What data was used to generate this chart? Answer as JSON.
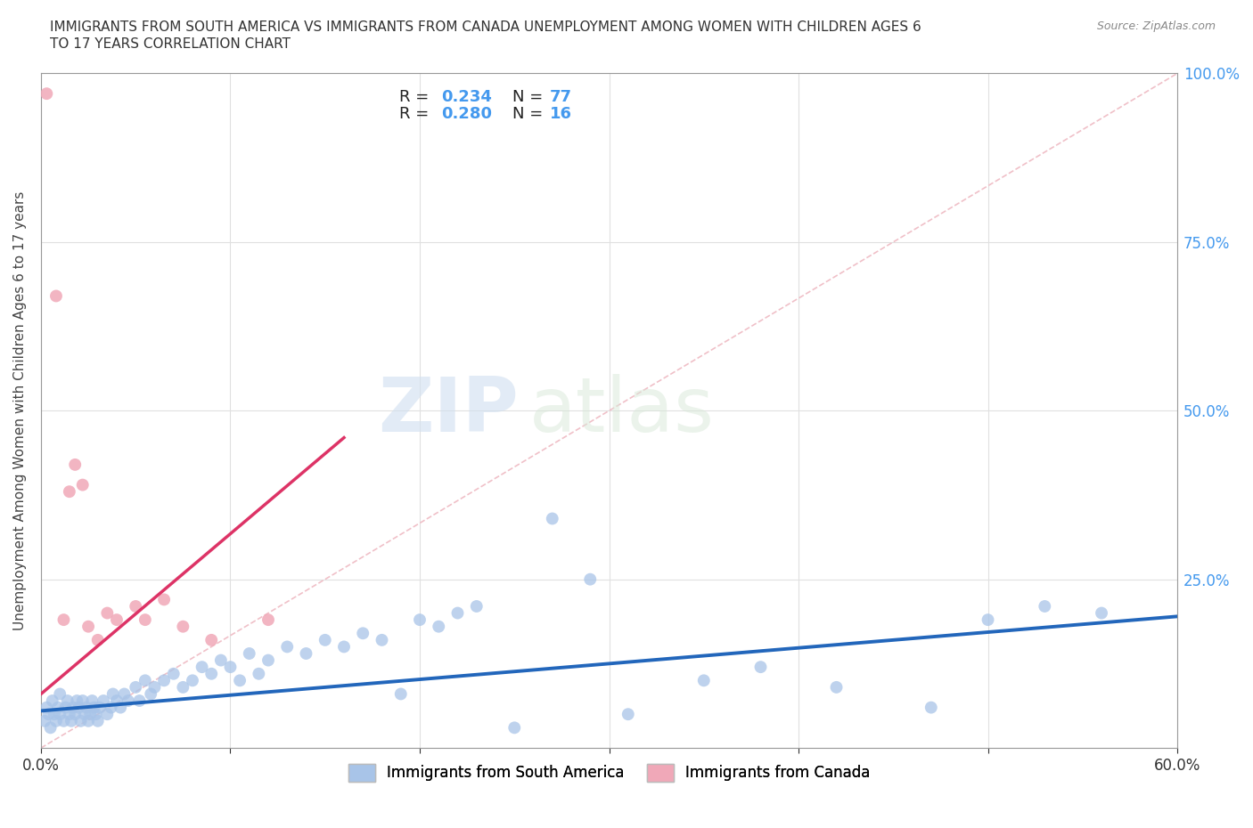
{
  "title_line1": "IMMIGRANTS FROM SOUTH AMERICA VS IMMIGRANTS FROM CANADA UNEMPLOYMENT AMONG WOMEN WITH CHILDREN AGES 6",
  "title_line2": "TO 17 YEARS CORRELATION CHART",
  "source": "Source: ZipAtlas.com",
  "ylabel": "Unemployment Among Women with Children Ages 6 to 17 years",
  "xlim": [
    0.0,
    0.6
  ],
  "ylim": [
    0.0,
    1.0
  ],
  "xticks": [
    0.0,
    0.1,
    0.2,
    0.3,
    0.4,
    0.5,
    0.6
  ],
  "xticklabels": [
    "0.0%",
    "",
    "",
    "",
    "",
    "",
    "60.0%"
  ],
  "yticks": [
    0.0,
    0.25,
    0.5,
    0.75,
    1.0
  ],
  "ytick_right_labels": [
    "",
    "25.0%",
    "50.0%",
    "75.0%",
    "100.0%"
  ],
  "blue_color": "#a8c4e8",
  "pink_color": "#f0a8b8",
  "blue_line_color": "#2266bb",
  "pink_line_color": "#dd3366",
  "diag_line_color": "#f0c0c8",
  "R_blue": 0.234,
  "N_blue": 77,
  "R_pink": 0.28,
  "N_pink": 16,
  "watermark_zip": "ZIP",
  "watermark_atlas": "atlas",
  "legend_label_blue": "Immigrants from South America",
  "legend_label_pink": "Immigrants from Canada",
  "blue_scatter_x": [
    0.002,
    0.003,
    0.004,
    0.005,
    0.006,
    0.007,
    0.008,
    0.009,
    0.01,
    0.01,
    0.012,
    0.013,
    0.014,
    0.015,
    0.016,
    0.017,
    0.018,
    0.019,
    0.02,
    0.021,
    0.022,
    0.023,
    0.024,
    0.025,
    0.026,
    0.027,
    0.028,
    0.029,
    0.03,
    0.031,
    0.033,
    0.035,
    0.037,
    0.038,
    0.04,
    0.042,
    0.044,
    0.046,
    0.05,
    0.052,
    0.055,
    0.058,
    0.06,
    0.065,
    0.07,
    0.075,
    0.08,
    0.085,
    0.09,
    0.095,
    0.1,
    0.105,
    0.11,
    0.115,
    0.12,
    0.13,
    0.14,
    0.15,
    0.16,
    0.17,
    0.18,
    0.19,
    0.2,
    0.21,
    0.22,
    0.23,
    0.25,
    0.27,
    0.29,
    0.31,
    0.35,
    0.38,
    0.42,
    0.47,
    0.5,
    0.53,
    0.56
  ],
  "blue_scatter_y": [
    0.04,
    0.06,
    0.05,
    0.03,
    0.07,
    0.05,
    0.04,
    0.06,
    0.05,
    0.08,
    0.04,
    0.06,
    0.07,
    0.05,
    0.04,
    0.06,
    0.05,
    0.07,
    0.06,
    0.04,
    0.07,
    0.05,
    0.06,
    0.04,
    0.05,
    0.07,
    0.06,
    0.05,
    0.04,
    0.06,
    0.07,
    0.05,
    0.06,
    0.08,
    0.07,
    0.06,
    0.08,
    0.07,
    0.09,
    0.07,
    0.1,
    0.08,
    0.09,
    0.1,
    0.11,
    0.09,
    0.1,
    0.12,
    0.11,
    0.13,
    0.12,
    0.1,
    0.14,
    0.11,
    0.13,
    0.15,
    0.14,
    0.16,
    0.15,
    0.17,
    0.16,
    0.08,
    0.19,
    0.18,
    0.2,
    0.21,
    0.03,
    0.34,
    0.25,
    0.05,
    0.1,
    0.12,
    0.09,
    0.06,
    0.19,
    0.21,
    0.2
  ],
  "pink_scatter_x": [
    0.003,
    0.008,
    0.012,
    0.015,
    0.018,
    0.022,
    0.025,
    0.03,
    0.035,
    0.04,
    0.05,
    0.055,
    0.065,
    0.075,
    0.09,
    0.12
  ],
  "pink_scatter_y": [
    0.97,
    0.67,
    0.19,
    0.38,
    0.42,
    0.39,
    0.18,
    0.16,
    0.2,
    0.19,
    0.21,
    0.19,
    0.22,
    0.18,
    0.16,
    0.19
  ],
  "blue_line_x": [
    0.0,
    0.6
  ],
  "blue_line_y": [
    0.055,
    0.195
  ],
  "pink_line_x": [
    0.0,
    0.16
  ],
  "pink_line_y": [
    0.08,
    0.46
  ],
  "diag_line_x": [
    0.0,
    0.6
  ],
  "diag_line_y": [
    0.0,
    1.0
  ],
  "tick_color": "#4499ee",
  "axis_color": "#999999",
  "grid_color": "#e0e0e0"
}
